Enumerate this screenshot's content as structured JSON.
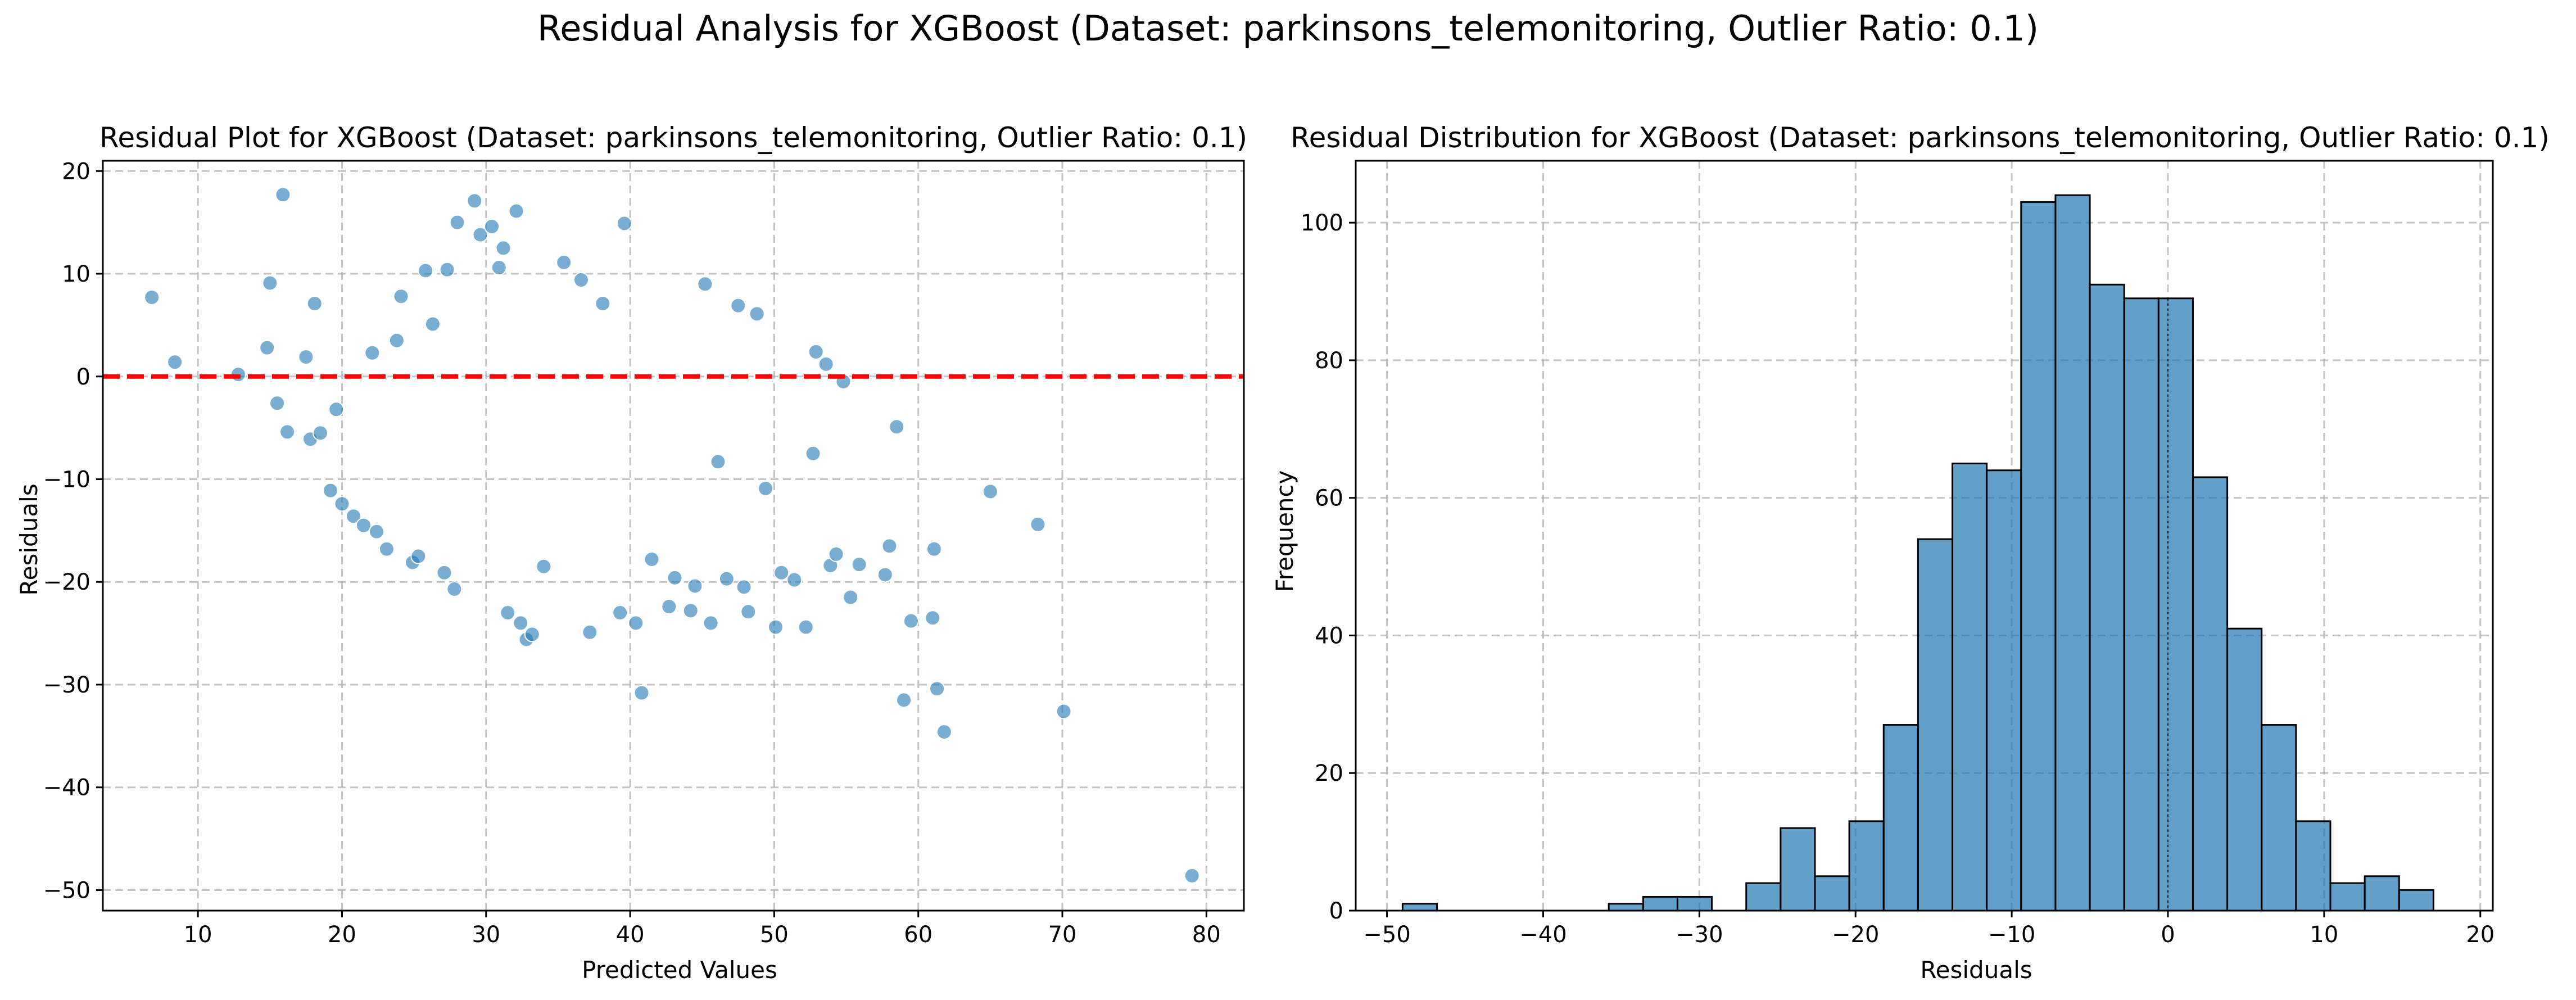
{
  "figure": {
    "title": "Residual Analysis for XGBoost (Dataset: parkinsons_telemonitoring, Outlier Ratio: 0.1)"
  },
  "chart_data": [
    {
      "type": "scatter",
      "title": "Residual Plot for XGBoost (Dataset: parkinsons_telemonitoring, Outlier Ratio: 0.1)",
      "xlabel": "Predicted Values",
      "ylabel": "Residuals",
      "xlim": [
        3.4,
        82.6
      ],
      "ylim": [
        -52,
        21
      ],
      "xticks": [
        10,
        20,
        30,
        40,
        50,
        60,
        70,
        80
      ],
      "yticks": [
        20,
        10,
        0,
        -10,
        -20,
        -30,
        -40,
        -50
      ],
      "grid": true,
      "point_color": "#1f77b4",
      "reference_line": {
        "y": 0,
        "color": "#ff0000",
        "style": "dashed"
      },
      "points": [
        [
          6.8,
          7.7
        ],
        [
          8.4,
          1.4
        ],
        [
          12.8,
          0.2
        ],
        [
          15.0,
          9.1
        ],
        [
          15.9,
          17.7
        ],
        [
          14.8,
          2.8
        ],
        [
          15.5,
          -2.6
        ],
        [
          16.2,
          -5.4
        ],
        [
          17.5,
          1.9
        ],
        [
          17.8,
          -6.1
        ],
        [
          18.1,
          7.1
        ],
        [
          18.5,
          -5.5
        ],
        [
          19.2,
          -11.1
        ],
        [
          19.6,
          -3.2
        ],
        [
          20.0,
          -12.4
        ],
        [
          20.8,
          -13.6
        ],
        [
          21.5,
          -14.5
        ],
        [
          22.1,
          2.3
        ],
        [
          22.4,
          -15.1
        ],
        [
          23.1,
          -16.8
        ],
        [
          23.8,
          3.5
        ],
        [
          24.1,
          7.8
        ],
        [
          24.9,
          -18.1
        ],
        [
          25.3,
          -17.5
        ],
        [
          25.8,
          10.3
        ],
        [
          26.3,
          5.1
        ],
        [
          27.1,
          -19.1
        ],
        [
          27.3,
          10.4
        ],
        [
          27.8,
          -20.7
        ],
        [
          28.0,
          15.0
        ],
        [
          29.2,
          17.1
        ],
        [
          29.6,
          13.8
        ],
        [
          30.4,
          14.6
        ],
        [
          30.9,
          10.6
        ],
        [
          31.2,
          12.5
        ],
        [
          32.1,
          16.1
        ],
        [
          31.5,
          -23.0
        ],
        [
          32.4,
          -24.0
        ],
        [
          32.8,
          -25.6
        ],
        [
          33.2,
          -25.1
        ],
        [
          34.0,
          -18.5
        ],
        [
          35.4,
          11.1
        ],
        [
          36.6,
          9.4
        ],
        [
          37.2,
          -24.9
        ],
        [
          38.1,
          7.1
        ],
        [
          39.3,
          -23.0
        ],
        [
          39.6,
          14.9
        ],
        [
          40.4,
          -24.0
        ],
        [
          40.8,
          -30.8
        ],
        [
          41.5,
          -17.8
        ],
        [
          42.7,
          -22.4
        ],
        [
          43.1,
          -19.6
        ],
        [
          44.2,
          -22.8
        ],
        [
          44.5,
          -20.4
        ],
        [
          45.2,
          9.0
        ],
        [
          45.6,
          -24.0
        ],
        [
          46.1,
          -8.3
        ],
        [
          46.7,
          -19.7
        ],
        [
          47.5,
          6.9
        ],
        [
          47.9,
          -20.5
        ],
        [
          48.2,
          -22.9
        ],
        [
          48.8,
          6.1
        ],
        [
          49.4,
          -10.9
        ],
        [
          50.1,
          -24.4
        ],
        [
          50.5,
          -19.1
        ],
        [
          51.4,
          -19.8
        ],
        [
          52.2,
          -24.4
        ],
        [
          52.7,
          -7.5
        ],
        [
          52.9,
          2.4
        ],
        [
          53.6,
          1.2
        ],
        [
          53.9,
          -18.4
        ],
        [
          54.3,
          -17.3
        ],
        [
          54.8,
          -0.5
        ],
        [
          55.3,
          -21.5
        ],
        [
          55.9,
          -18.3
        ],
        [
          57.7,
          -19.3
        ],
        [
          58.0,
          -16.5
        ],
        [
          58.5,
          -4.9
        ],
        [
          59.0,
          -31.5
        ],
        [
          59.5,
          -23.8
        ],
        [
          61.0,
          -23.5
        ],
        [
          61.1,
          -16.8
        ],
        [
          61.3,
          -30.4
        ],
        [
          61.8,
          -34.6
        ],
        [
          65.0,
          -11.2
        ],
        [
          68.3,
          -14.4
        ],
        [
          70.1,
          -32.6
        ],
        [
          79.0,
          -48.6
        ]
      ]
    },
    {
      "type": "bar",
      "title": "Residual Distribution for XGBoost (Dataset: parkinsons_telemonitoring, Outlier Ratio: 0.1)",
      "xlabel": "Residuals",
      "ylabel": "Frequency",
      "xlim": [
        -52.0,
        20.8
      ],
      "ylim": [
        0,
        109
      ],
      "xticks": [
        -50,
        -40,
        -30,
        -20,
        -10,
        0,
        10,
        20
      ],
      "yticks": [
        0,
        20,
        40,
        60,
        80,
        100
      ],
      "grid": true,
      "bar_color": "#1f77b4",
      "bin_start": -49.0,
      "bin_width": 2.2,
      "counts": [
        1,
        0,
        0,
        0,
        0,
        0,
        1,
        2,
        2,
        0,
        4,
        12,
        5,
        13,
        27,
        54,
        65,
        64,
        103,
        104,
        91,
        89,
        89,
        63,
        41,
        27,
        13,
        4,
        5,
        3
      ],
      "reference_line": {
        "x": 0,
        "color": "#000000",
        "style": "dotted"
      }
    }
  ]
}
